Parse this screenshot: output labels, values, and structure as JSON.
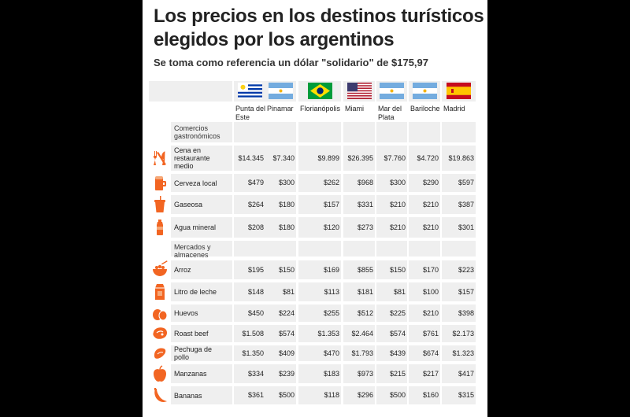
{
  "title": "Los precios en los destinos turísticos elegidos por los argentinos",
  "subtitle": "Se toma como referencia un dólar \"solidario\" de $175,97",
  "accent_color": "#f26522",
  "columns": [
    {
      "name": "Punta del Este",
      "flag": "uruguay-flag-icon"
    },
    {
      "name": "Pinamar",
      "flag": "argentina-flag-icon"
    },
    {
      "name": "Florianópolis",
      "flag": "brazil-flag-icon"
    },
    {
      "name": "Miami",
      "flag": "usa-flag-icon"
    },
    {
      "name": "Mar del Plata",
      "flag": "argentina-flag-icon"
    },
    {
      "name": "Bariloche",
      "flag": "argentina-flag-icon"
    },
    {
      "name": "Madrid",
      "flag": "spain-flag-icon"
    }
  ],
  "sections": [
    {
      "label": "Comercios gastronómicos",
      "rows": [
        {
          "label": "Cena en restaurante medio",
          "icon": "fork-knife-icon",
          "values": [
            "$14.345",
            "$7.340",
            "$9.899",
            "$26.395",
            "$7.760",
            "$4.720",
            "$19.863"
          ]
        },
        {
          "label": "Cerveza local",
          "icon": "beer-glass-icon",
          "values": [
            "$479",
            "$300",
            "$262",
            "$968",
            "$300",
            "$290",
            "$597"
          ]
        },
        {
          "label": "Gaseosa",
          "icon": "soda-cup-icon",
          "values": [
            "$264",
            "$180",
            "$157",
            "$331",
            "$210",
            "$210",
            "$387"
          ]
        },
        {
          "label": "Agua mineral",
          "icon": "water-bottle-icon",
          "values": [
            "$208",
            "$180",
            "$120",
            "$273",
            "$210",
            "$210",
            "$301"
          ]
        }
      ]
    },
    {
      "label": "Mercados y almacenes",
      "rows": [
        {
          "label": "Arroz",
          "icon": "rice-bowl-icon",
          "values": [
            "$195",
            "$150",
            "$169",
            "$855",
            "$150",
            "$170",
            "$223"
          ]
        },
        {
          "label": "Litro de leche",
          "icon": "milk-carton-icon",
          "values": [
            "$148",
            "$81",
            "$113",
            "$181",
            "$81",
            "$100",
            "$157"
          ]
        },
        {
          "label": "Huevos",
          "icon": "eggs-icon",
          "values": [
            "$450",
            "$224",
            "$255",
            "$512",
            "$225",
            "$210",
            "$398"
          ]
        },
        {
          "label": "Roast beef",
          "icon": "steak-icon",
          "values": [
            "$1.508",
            "$574",
            "$1.353",
            "$2.464",
            "$574",
            "$761",
            "$2.173"
          ]
        },
        {
          "label": "Pechuga de pollo",
          "icon": "chicken-breast-icon",
          "values": [
            "$1.350",
            "$409",
            "$470",
            "$1.793",
            "$439",
            "$674",
            "$1.323"
          ]
        },
        {
          "label": "Manzanas",
          "icon": "apple-icon",
          "values": [
            "$334",
            "$239",
            "$183",
            "$973",
            "$215",
            "$217",
            "$417"
          ]
        },
        {
          "label": "Bananas",
          "icon": "banana-icon",
          "values": [
            "$361",
            "$500",
            "$118",
            "$296",
            "$500",
            "$160",
            "$315"
          ]
        }
      ]
    }
  ]
}
